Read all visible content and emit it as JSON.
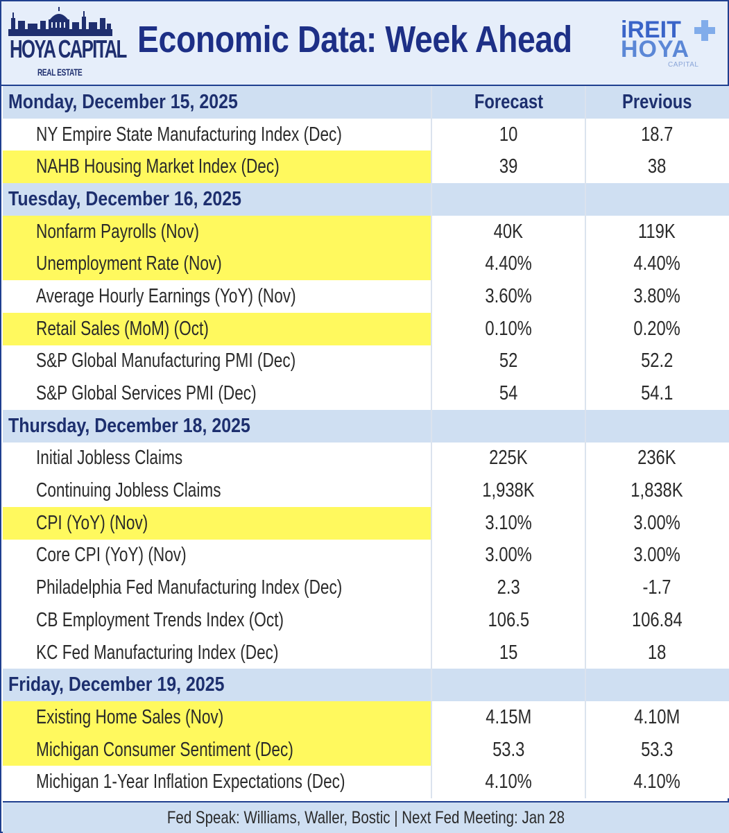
{
  "header": {
    "logo_left_main": "HOYA CAPITAL",
    "logo_left_sub": "REAL ESTATE",
    "title": "Economic Data: Week Ahead",
    "logo_right_top": "iREIT",
    "logo_right_mid": "HOYA",
    "logo_right_sub": "CAPITAL",
    "logo_left_icon": "capitol-skyline-icon",
    "logo_right_icon": "plus-icon"
  },
  "colors": {
    "brand_navy": "#1d2f86",
    "day_row_bg": "#cfdff2",
    "highlight": "#fff95e"
  },
  "columns": {
    "forecast": "Forecast",
    "previous": "Previous"
  },
  "days": [
    {
      "label": "Monday, December 15, 2025",
      "rows": [
        {
          "name": "NY Empire State Manufacturing Index (Dec)",
          "forecast": "10",
          "previous": "18.7",
          "highlight": false
        },
        {
          "name": "NAHB Housing Market Index (Dec)",
          "forecast": "39",
          "previous": "38",
          "highlight": true
        }
      ]
    },
    {
      "label": "Tuesday, December 16, 2025",
      "rows": [
        {
          "name": "Nonfarm Payrolls (Nov)",
          "forecast": "40K",
          "previous": "119K",
          "highlight": true
        },
        {
          "name": "Unemployment Rate (Nov)",
          "forecast": "4.40%",
          "previous": "4.40%",
          "highlight": true
        },
        {
          "name": "Average Hourly Earnings (YoY) (Nov)",
          "forecast": "3.60%",
          "previous": "3.80%",
          "highlight": false
        },
        {
          "name": "Retail Sales (MoM) (Oct)",
          "forecast": "0.10%",
          "previous": "0.20%",
          "highlight": true
        },
        {
          "name": "S&P Global Manufacturing PMI (Dec)",
          "forecast": "52",
          "previous": "52.2",
          "highlight": false
        },
        {
          "name": "S&P Global Services PMI (Dec)",
          "forecast": "54",
          "previous": "54.1",
          "highlight": false
        }
      ]
    },
    {
      "label": "Thursday, December 18, 2025",
      "rows": [
        {
          "name": "Initial Jobless Claims",
          "forecast": "225K",
          "previous": "236K",
          "highlight": false
        },
        {
          "name": "Continuing Jobless Claims",
          "forecast": "1,938K",
          "previous": "1,838K",
          "highlight": false
        },
        {
          "name": "CPI (YoY) (Nov)",
          "forecast": "3.10%",
          "previous": "3.00%",
          "highlight": true
        },
        {
          "name": "Core CPI (YoY) (Nov)",
          "forecast": "3.00%",
          "previous": "3.00%",
          "highlight": false
        },
        {
          "name": "Philadelphia Fed Manufacturing Index (Dec)",
          "forecast": "2.3",
          "previous": "-1.7",
          "highlight": false
        },
        {
          "name": "CB Employment Trends Index (Oct)",
          "forecast": "106.5",
          "previous": "106.84",
          "highlight": false
        },
        {
          "name": "KC Fed Manufacturing Index (Dec)",
          "forecast": "15",
          "previous": "18",
          "highlight": false
        }
      ]
    },
    {
      "label": "Friday, December 19, 2025",
      "rows": [
        {
          "name": "Existing Home Sales (Nov)",
          "forecast": "4.15M",
          "previous": "4.10M",
          "highlight": true
        },
        {
          "name": "Michigan Consumer Sentiment (Dec)",
          "forecast": "53.3",
          "previous": "53.3",
          "highlight": true
        },
        {
          "name": "Michigan 1-Year Inflation Expectations (Dec)",
          "forecast": "4.10%",
          "previous": "4.10%",
          "highlight": false
        }
      ]
    }
  ],
  "footer": "Fed Speak: Williams, Waller, Bostic | Next Fed Meeting: Jan 28"
}
